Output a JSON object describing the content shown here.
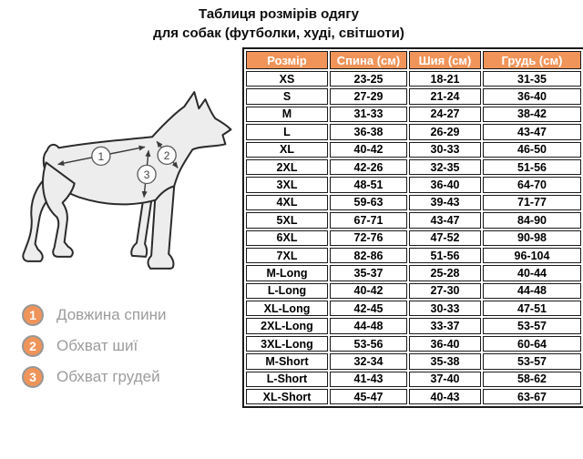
{
  "title": {
    "line1": "Таблиця розмірів одягу",
    "line2": "для собак (футболки, худі, світшоти)"
  },
  "chart_data": {
    "type": "table",
    "title": "Таблиця розмірів одягу для собак (футболки, худі, світшоти)",
    "columns": [
      "Розмір",
      "Спина (см)",
      "Шия (см)",
      "Грудь (см)"
    ],
    "rows": [
      [
        "XS",
        "23-25",
        "18-21",
        "31-35"
      ],
      [
        "S",
        "27-29",
        "21-24",
        "36-40"
      ],
      [
        "M",
        "31-33",
        "24-27",
        "38-42"
      ],
      [
        "L",
        "36-38",
        "26-29",
        "43-47"
      ],
      [
        "XL",
        "40-42",
        "30-33",
        "46-50"
      ],
      [
        "2XL",
        "42-26",
        "32-35",
        "51-56"
      ],
      [
        "3XL",
        "48-51",
        "36-40",
        "64-70"
      ],
      [
        "4XL",
        "59-63",
        "39-43",
        "71-77"
      ],
      [
        "5XL",
        "67-71",
        "43-47",
        "84-90"
      ],
      [
        "6XL",
        "72-76",
        "47-52",
        "90-98"
      ],
      [
        "7XL",
        "82-86",
        "51-56",
        "96-104"
      ],
      [
        "M-Long",
        "35-37",
        "25-28",
        "40-44"
      ],
      [
        "L-Long",
        "40-42",
        "27-30",
        "44-48"
      ],
      [
        "XL-Long",
        "42-45",
        "30-33",
        "47-51"
      ],
      [
        "2XL-Long",
        "44-48",
        "33-37",
        "53-57"
      ],
      [
        "3XL-Long",
        "53-56",
        "36-40",
        "60-64"
      ],
      [
        "M-Short",
        "32-34",
        "35-38",
        "53-57"
      ],
      [
        "L-Short",
        "41-43",
        "37-40",
        "58-62"
      ],
      [
        "XL-Short",
        "45-47",
        "40-43",
        "63-67"
      ]
    ]
  },
  "legend": {
    "items": [
      {
        "number": "1",
        "label": "Довжина спини"
      },
      {
        "number": "2",
        "label": "Обхват шиї"
      },
      {
        "number": "3",
        "label": "Обхват грудей"
      }
    ]
  },
  "diagram": {
    "markers": [
      "1",
      "2",
      "3"
    ]
  },
  "colors": {
    "header_bg": "#F0945A",
    "legend_circle": "#F0945A",
    "table_border": "#1a1a1a",
    "legend_text": "#9c9c9c",
    "dog_fill": "#ededed",
    "dog_outline": "#2b2b2b"
  }
}
